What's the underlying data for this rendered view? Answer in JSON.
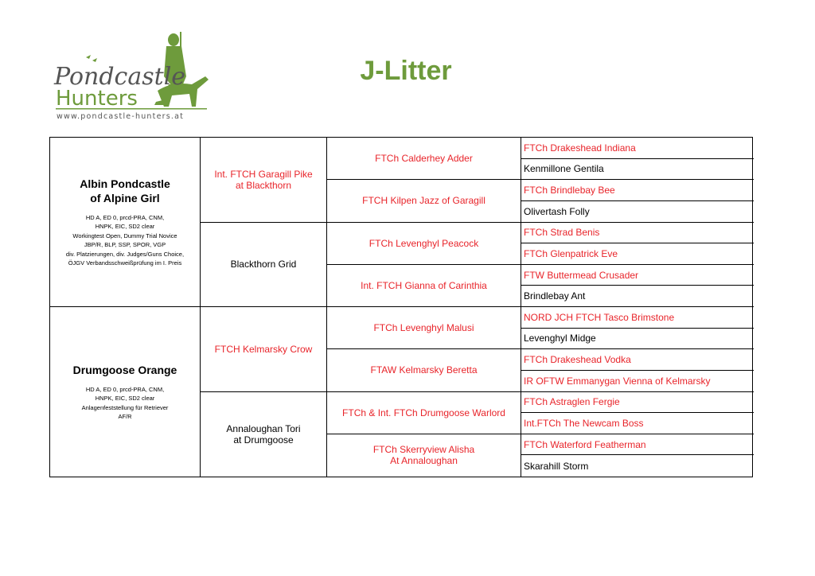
{
  "logo": {
    "text_top": "Pondcastle",
    "text_bottom": "Hunters",
    "url": "www.pondcastle-hunters.at",
    "color": "#6e9b3c"
  },
  "title": "J-Litter",
  "colors": {
    "title": "#6e9b3c",
    "titled_name": "#e8242a",
    "plain_name": "#000000"
  },
  "parents": [
    {
      "name_line1": "Albin Pondcastle",
      "name_line2": "of Alpine Girl",
      "titles": [
        "HD A, ED 0, prcd-PRA, CNM,",
        "HNPK, EIC, SD2 clear",
        "Workingtest Open, Dummy Trial Novice",
        "JBP/R, BLP, SSP, SPOR, VGP",
        "div. Platzierungen, div. Judges/Guns Choice,",
        "ÖJGV Verbandsschweißprüfung im I. Preis"
      ]
    },
    {
      "name_line1": "Drumgoose Orange",
      "name_line2": "",
      "titles": [
        "HD A, ED 0, prcd-PRA, CNM,",
        "HNPK, EIC, SD2 clear",
        "Anlagenfeststellung für Retriever",
        "AF/R"
      ]
    }
  ],
  "grandparents": [
    {
      "line1": "Int. FTCH Garagill Pike",
      "line2": "at Blackthorn",
      "red": true
    },
    {
      "line1": "Blackthorn Grid",
      "line2": "",
      "red": false
    },
    {
      "line1": "FTCH Kelmarsky Crow",
      "line2": "",
      "red": true
    },
    {
      "line1": "Annaloughan Tori",
      "line2": "at Drumgoose",
      "red": false
    }
  ],
  "great_grandparents": [
    {
      "line1": "FTCh Calderhey Adder",
      "line2": "",
      "red": true
    },
    {
      "line1": "FTCH Kilpen Jazz of Garagill",
      "line2": "",
      "red": true
    },
    {
      "line1": "FTCh Levenghyl Peacock",
      "line2": "",
      "red": true
    },
    {
      "line1": "Int. FTCH Gianna of Carinthia",
      "line2": "",
      "red": true
    },
    {
      "line1": "FTCh Levenghyl Malusi",
      "line2": "",
      "red": true
    },
    {
      "line1": "FTAW Kelmarsky Beretta",
      "line2": "",
      "red": true
    },
    {
      "line1": "FTCh & Int. FTCh Drumgoose Warlord",
      "line2": "",
      "red": true
    },
    {
      "line1": "FTCh Skerryview Alisha",
      "line2": "At Annaloughan",
      "red": true
    }
  ],
  "gen4": [
    {
      "name": "FTCh Drakeshead Indiana",
      "red": true
    },
    {
      "name": "Kenmillone Gentila",
      "red": false
    },
    {
      "name": "FTCh Brindlebay Bee",
      "red": true
    },
    {
      "name": "Olivertash Folly",
      "red": false
    },
    {
      "name": "FTCh Strad Benis",
      "red": true
    },
    {
      "name": "FTCh Glenpatrick Eve",
      "red": true
    },
    {
      "name": "FTW Buttermead Crusader",
      "red": true
    },
    {
      "name": "Brindlebay Ant",
      "red": false
    },
    {
      "name": "NORD JCH FTCH Tasco Brimstone",
      "red": true
    },
    {
      "name": "Levenghyl Midge",
      "red": false
    },
    {
      "name": "FTCh Drakeshead Vodka",
      "red": true
    },
    {
      "name": "IR OFTW Emmanygan Vienna of Kelmarsky",
      "red": true
    },
    {
      "name": "FTCh Astraglen Fergie",
      "red": true
    },
    {
      "name": "Int.FTCh The Newcam Boss",
      "red": true
    },
    {
      "name": "FTCh Waterford Featherman",
      "red": true
    },
    {
      "name": "Skarahill Storm",
      "red": false
    }
  ]
}
